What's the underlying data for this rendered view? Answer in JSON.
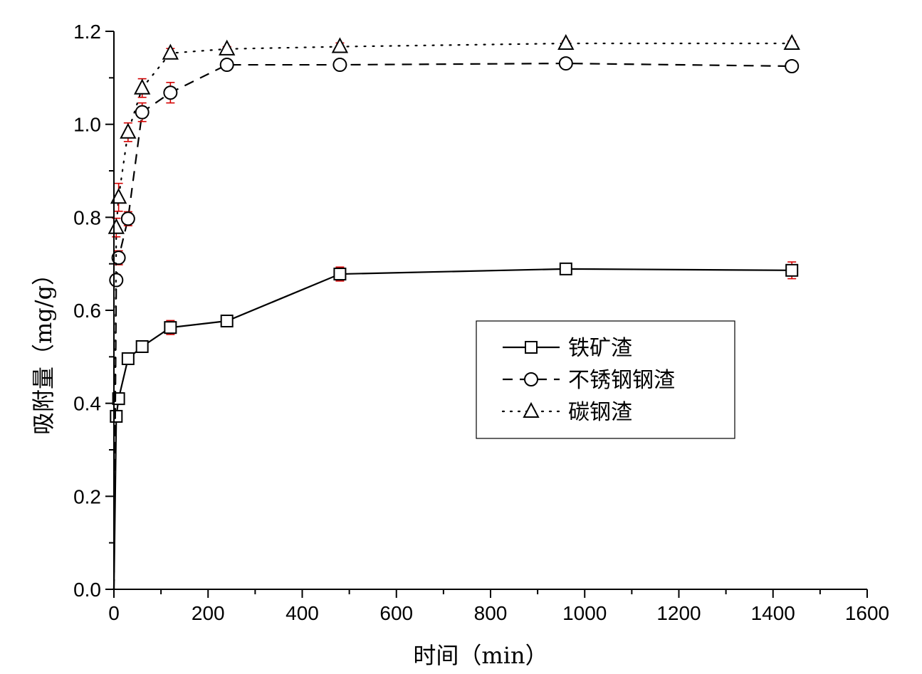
{
  "chart_data": {
    "type": "line",
    "title": "",
    "xlabel": "时间（min）",
    "ylabel": "吸附量（mg/g）",
    "xlim": [
      0,
      1600
    ],
    "ylim": [
      0,
      1.2
    ],
    "xticks": [
      0,
      200,
      400,
      600,
      800,
      1000,
      1200,
      1400,
      1600
    ],
    "yticks": [
      0.0,
      0.2,
      0.4,
      0.6,
      0.8,
      1.0,
      1.2
    ],
    "xtick_labels": [
      "0",
      "200",
      "400",
      "600",
      "800",
      "1000",
      "1200",
      "1400",
      "1600"
    ],
    "ytick_labels": [
      "0.0",
      "0.2",
      "0.4",
      "0.6",
      "0.8",
      "1.0",
      "1.2"
    ],
    "legend_position": "center-right",
    "series": [
      {
        "name": "铁矿渣",
        "marker": "square",
        "line_style": "solid",
        "x": [
          0,
          5,
          10,
          30,
          60,
          120,
          240,
          480,
          960,
          1440
        ],
        "y": [
          0.0,
          0.372,
          0.41,
          0.496,
          0.522,
          0.563,
          0.577,
          0.678,
          0.689,
          0.686
        ],
        "err": [
          0.0,
          0.01,
          0.012,
          0.012,
          0.01,
          0.015,
          0.008,
          0.015,
          0.01,
          0.018
        ]
      },
      {
        "name": "不锈钢钢渣",
        "marker": "circle",
        "line_style": "dashed",
        "x": [
          0,
          5,
          10,
          30,
          60,
          120,
          240,
          480,
          960,
          1440
        ],
        "y": [
          0.0,
          0.665,
          0.713,
          0.797,
          1.026,
          1.068,
          1.128,
          1.128,
          1.131,
          1.125
        ],
        "err": [
          0.0,
          0.012,
          0.015,
          0.015,
          0.02,
          0.022,
          0.005,
          0.008,
          0.005,
          0.005
        ]
      },
      {
        "name": "碳钢渣",
        "marker": "triangle",
        "line_style": "dotted",
        "x": [
          0,
          5,
          10,
          30,
          60,
          120,
          240,
          480,
          960,
          1440
        ],
        "y": [
          0.0,
          0.778,
          0.843,
          0.983,
          1.078,
          1.153,
          1.162,
          1.167,
          1.174,
          1.174
        ],
        "err": [
          0.0,
          0.02,
          0.03,
          0.02,
          0.02,
          0.01,
          0.005,
          0.008,
          0.005,
          0.005
        ]
      }
    ]
  }
}
